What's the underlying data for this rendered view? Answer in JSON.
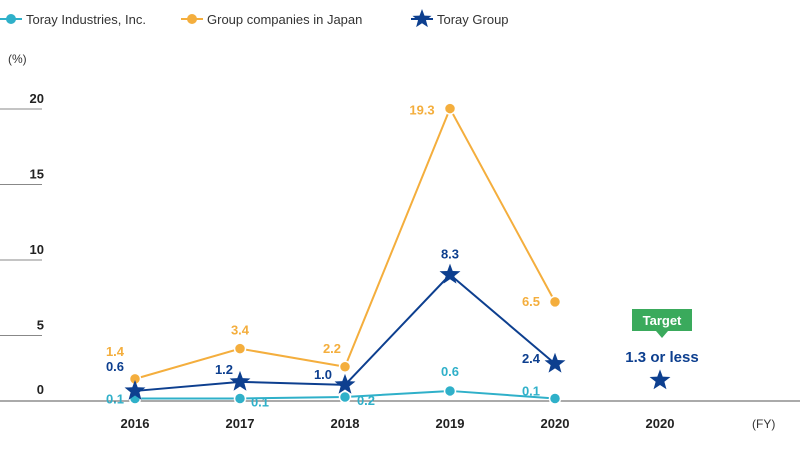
{
  "chart_data": {
    "type": "line",
    "ylabel": "(%)",
    "xlabel": "(FY)",
    "ylim": [
      0,
      20
    ],
    "yticks": [
      "0",
      "5",
      "10",
      "15",
      "20"
    ],
    "categories": [
      "2016",
      "2017",
      "2018",
      "2019",
      "2020",
      "2020"
    ],
    "series": [
      {
        "name": "Toray Industries, Inc.",
        "color": "#2fb0c9",
        "marker": "circle",
        "values": [
          0.1,
          0.1,
          0.2,
          0.6,
          0.1,
          null
        ],
        "labels": [
          "0.1",
          "0.1",
          "0.2",
          "0.6",
          "0.1",
          null
        ]
      },
      {
        "name": "Group companies in Japan",
        "color": "#f4ae3d",
        "marker": "circle",
        "values": [
          1.4,
          3.4,
          2.2,
          19.3,
          6.5,
          null
        ],
        "labels": [
          "1.4",
          "3.4",
          "2.2",
          "19.3",
          "6.5",
          null
        ]
      },
      {
        "name": "Toray Group",
        "color": "#0d3f8f",
        "marker": "star",
        "values": [
          0.6,
          1.2,
          1.0,
          8.3,
          2.4,
          1.3
        ],
        "labels": [
          "0.6",
          "1.2",
          "1.0",
          "8.3",
          "2.4",
          null
        ]
      }
    ],
    "target": {
      "badge": "Target",
      "text": "1.3 or less",
      "badge_color": "#3aaa5c"
    },
    "grid": false,
    "legend_position": "top-left"
  }
}
